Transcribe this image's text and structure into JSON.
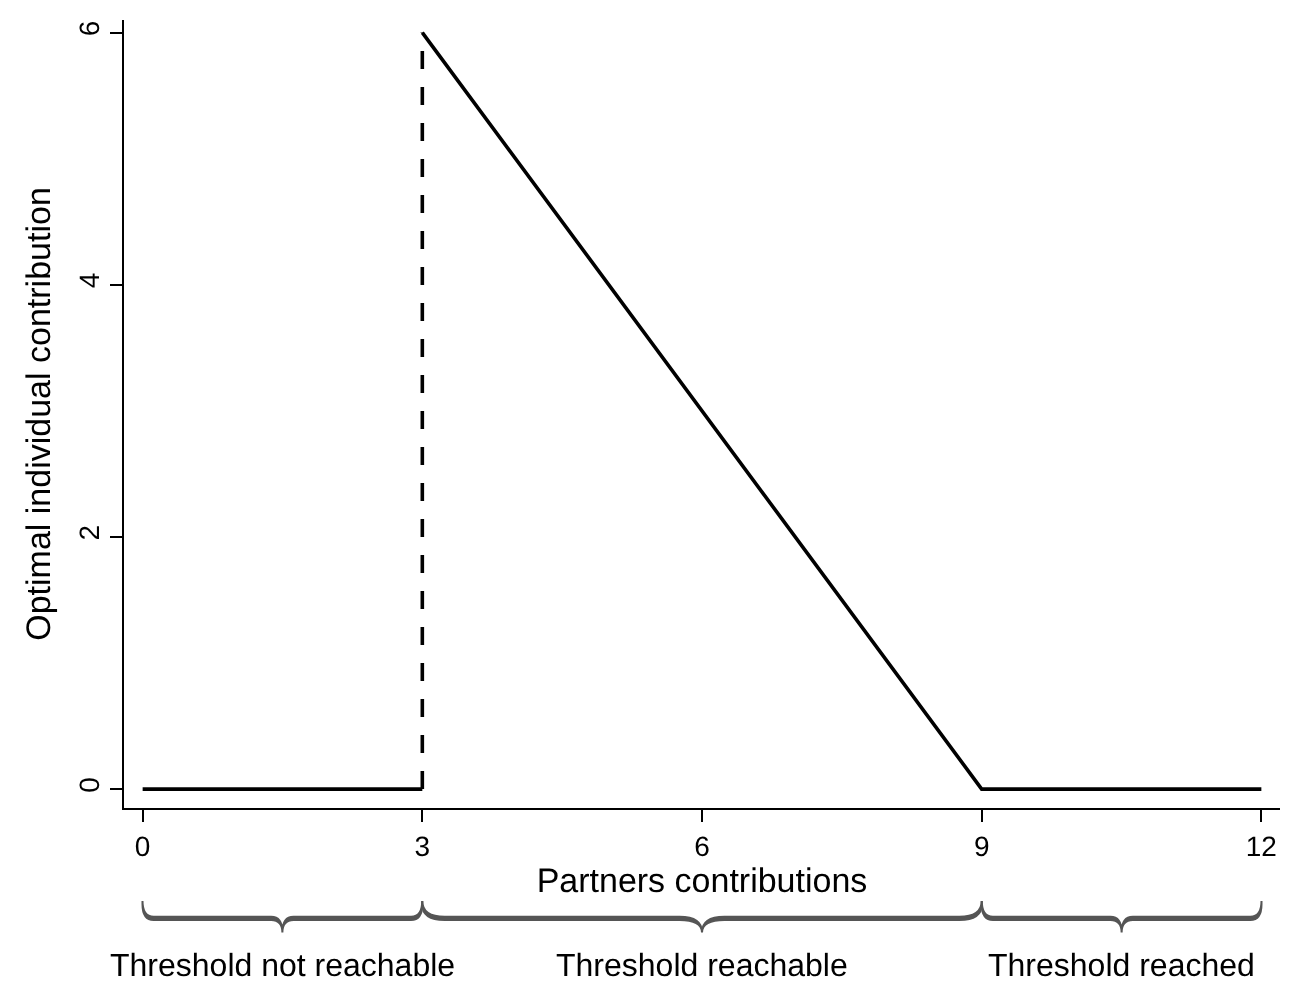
{
  "chart_data": {
    "type": "line",
    "xlabel": "Partners contributions",
    "ylabel": "Optimal individual contribution",
    "series": [
      {
        "color": "#000000",
        "x": [
          0,
          3
        ],
        "values": [
          0,
          0
        ],
        "line_style": "solid"
      },
      {
        "color": "#000000",
        "x": [
          3,
          3
        ],
        "values": [
          0,
          6
        ],
        "line_style": "dashed"
      },
      {
        "color": "#000000",
        "x": [
          3,
          9,
          12
        ],
        "values": [
          6,
          0,
          0
        ],
        "line_style": "solid"
      }
    ],
    "xlim": [
      -0.2,
      12.2
    ],
    "xticks": [
      0,
      3,
      6,
      9,
      12
    ],
    "ylim": [
      -0.15,
      6.1
    ],
    "yticks": [
      0,
      2,
      4,
      6
    ],
    "annotations": [
      "Threshold not reachable",
      "Threshold reachable",
      "Threshold reached"
    ],
    "marker": "none"
  }
}
